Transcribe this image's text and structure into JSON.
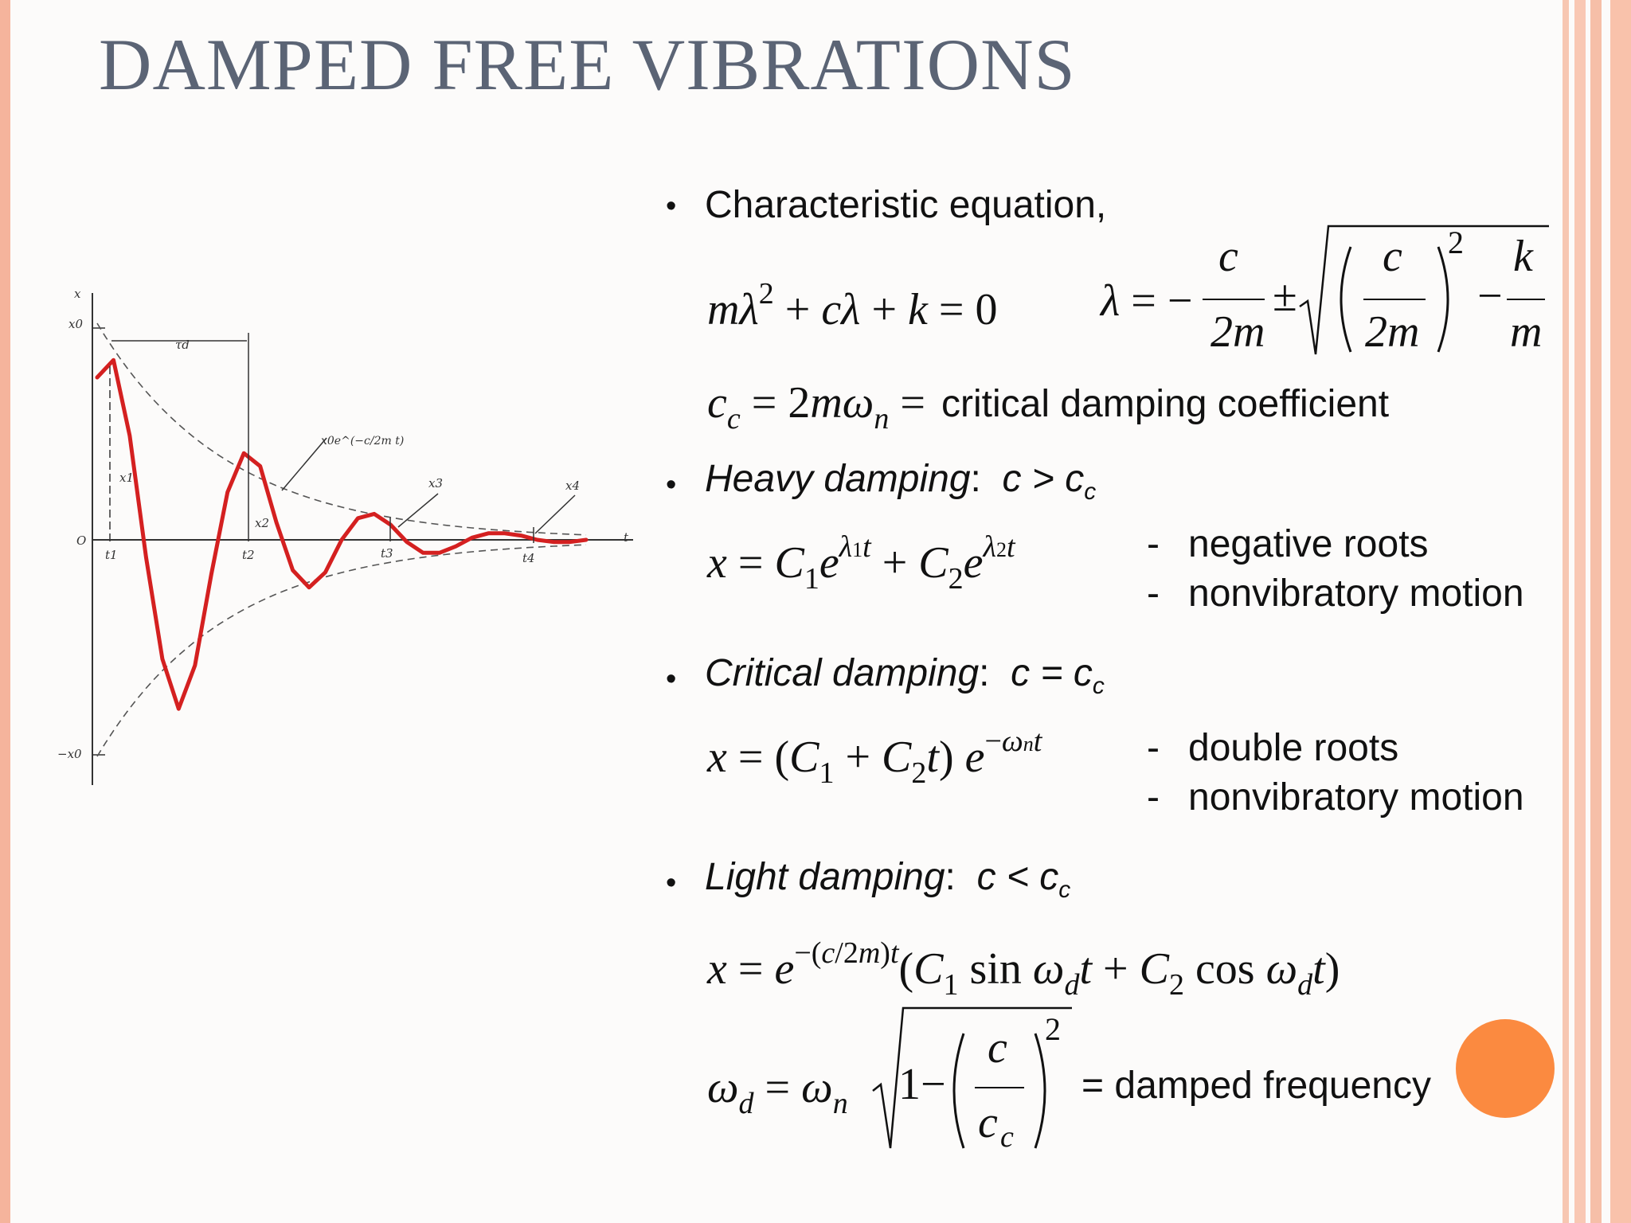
{
  "slide": {
    "title": "DAMPED FREE VIBRATIONS",
    "accent_color": "#fb8a40",
    "stripe_color": "#f5b49c",
    "title_color": "#5b6475"
  },
  "bullet_symbol": "•",
  "sections": {
    "characteristic": {
      "heading": "Characteristic equation,",
      "eq_char": "mλ² + cλ + k = 0",
      "eq_lambda": "λ = − c/2m ± √((c/2m)² − k/m)",
      "eq_critical_lhs": "c_c = 2mω_n =",
      "critical_desc": "critical damping coefficient"
    },
    "heavy": {
      "label": "Heavy damping",
      "condition": "c > c",
      "condition_sub": "c",
      "equation": "x = C₁e^(λ₁t) + C₂e^(λ₂t)",
      "notes": [
        "-",
        "negative roots",
        "-",
        "nonvibratory motion"
      ]
    },
    "critical": {
      "label": "Critical damping",
      "condition": "c = c",
      "condition_sub": "c",
      "equation": "x = (C₁ + C₂t) e^(−ωₙt)",
      "notes": [
        "-",
        "double roots",
        "-",
        "nonvibratory motion"
      ]
    },
    "light": {
      "label": "Light damping",
      "condition": "c < c",
      "condition_sub": "c",
      "equation": "x = e^(−(c/2m)t)(C₁ sin ω_d t + C₂ cos ω_d t)",
      "eq_omega_d": "ω_d = ω_n √(1 − (c/c_c)²)",
      "omega_desc": "= damped frequency"
    }
  },
  "chart_data": {
    "type": "line",
    "title": "",
    "xlabel": "t",
    "ylabel": "x",
    "y_ticks": [
      "x0",
      "O",
      "−x0"
    ],
    "x_ticks": [
      "t1",
      "t2",
      "t3",
      "t4"
    ],
    "annotations": [
      "τd",
      "x0e^(−c/2m t)",
      "x1",
      "x2",
      "x3",
      "x4"
    ],
    "series": [
      {
        "values_x": [
          0.0,
          0.3,
          0.6,
          0.9,
          1.2,
          1.5,
          1.8,
          2.1,
          2.4,
          2.7,
          3.0,
          3.3,
          3.6,
          3.9,
          4.2,
          4.5,
          4.8,
          5.1,
          5.4,
          5.7,
          6.0,
          6.3,
          6.6,
          6.9,
          7.2,
          7.5,
          7.8,
          8.1,
          8.4,
          8.7,
          9.0
        ],
        "values_y": [
          0.75,
          0.83,
          0.48,
          -0.08,
          -0.55,
          -0.78,
          -0.58,
          -0.16,
          0.22,
          0.4,
          0.34,
          0.08,
          -0.14,
          -0.22,
          -0.15,
          0.0,
          0.1,
          0.12,
          0.07,
          -0.01,
          -0.06,
          -0.06,
          -0.03,
          0.01,
          0.03,
          0.03,
          0.02,
          0.0,
          -0.01,
          -0.01,
          0.0
        ],
        "color": "#d42020"
      }
    ],
    "envelope_color": "#555555",
    "ylim": [
      -1,
      1
    ]
  }
}
